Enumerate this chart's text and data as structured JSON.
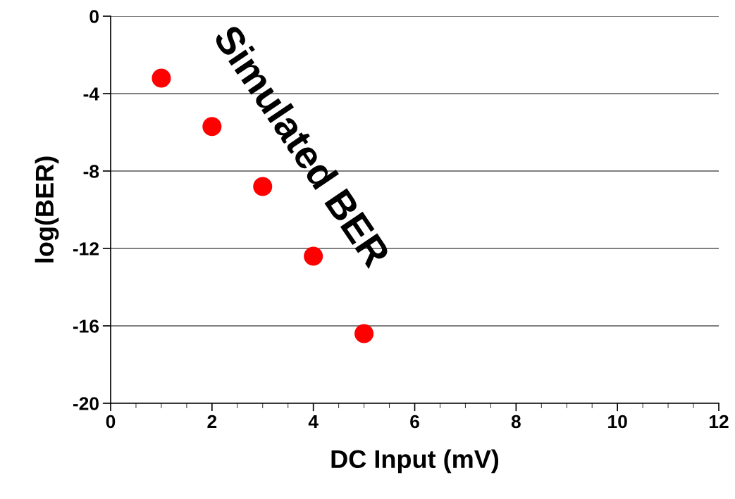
{
  "chart_data": {
    "type": "scatter",
    "xlabel": "DC Input (mV)",
    "ylabel": "log(BER)",
    "x": [
      1,
      2,
      3,
      4,
      5
    ],
    "series": [
      {
        "color": "#ff0000",
        "values": [
          -3.2,
          -5.7,
          -8.8,
          -12.4,
          -16.4
        ]
      }
    ],
    "xlim": [
      0,
      12
    ],
    "xticks": [
      0,
      2,
      4,
      6,
      8,
      10,
      12
    ],
    "ylim": [
      -20,
      0
    ],
    "yticks": [
      -20,
      -16,
      -12,
      -8,
      -4,
      0
    ],
    "grid": "y",
    "marker": "circle",
    "legend": false,
    "annotations": [
      "Simulated BER"
    ]
  }
}
